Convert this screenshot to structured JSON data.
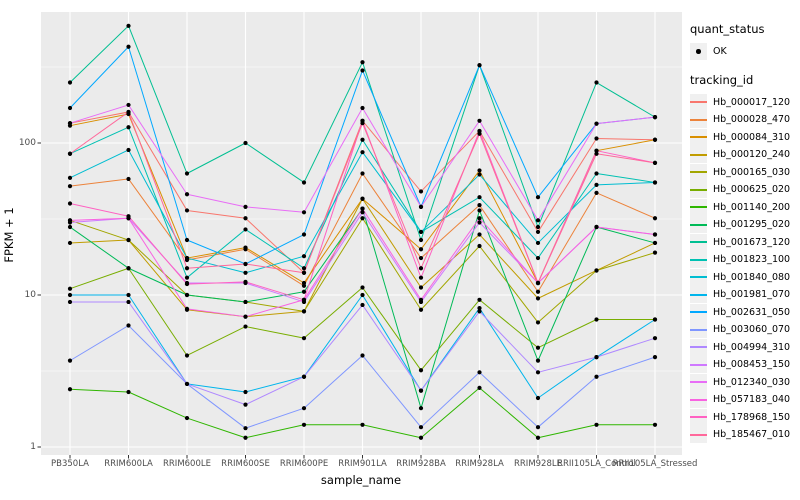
{
  "panel": {
    "bg": "#EBEBEB",
    "grid_color": "#FFFFFF",
    "tick_color": "#333333",
    "tick_label_color": "#4D4D4D",
    "legend_key_bg": "#F0F0F0"
  },
  "y_axis": {
    "title": "FPKM + 1",
    "ticks": [
      {
        "label": "100",
        "value": 100
      },
      {
        "label": "10",
        "value": 10
      },
      {
        "label": "1",
        "value": 1
      }
    ],
    "minor_values": [
      316.23,
      31.623,
      3.1623
    ]
  },
  "x_axis": {
    "title": "sample_name"
  },
  "legend": {
    "quant_title": "quant_status",
    "ok_label": "OK",
    "tracking_title": "tracking_id"
  },
  "chart_data": {
    "type": "line",
    "x_categories": [
      "PB350LA",
      "RRIM600LA",
      "RRIM600LE",
      "RRIM600SE",
      "RRIM600PE",
      "RRIM901LA",
      "RRIM928BA",
      "RRIM928LA",
      "RRIM928LE",
      "RRII105LA_Control",
      "RRII105LA_Stressed"
    ],
    "xlabel": "sample_name",
    "ylabel": "FPKM + 1",
    "y_scale": "log10",
    "ylim": [
      1,
      700
    ],
    "grid": true,
    "legend_position": "right",
    "point_color": "#000000",
    "series": [
      {
        "name": "Hb_000017_120",
        "color": "#F8766D",
        "values": [
          135,
          160,
          36,
          32,
          14,
          140,
          48,
          120,
          26,
          107,
          105
        ]
      },
      {
        "name": "Hb_000028_470",
        "color": "#EC833B",
        "values": [
          52,
          58,
          17,
          20,
          11.5,
          63,
          17.5,
          39,
          10.5,
          47,
          32
        ]
      },
      {
        "name": "Hb_000084_310",
        "color": "#D98F00",
        "values": [
          130,
          155,
          17.5,
          20.5,
          12,
          43,
          20,
          66,
          12,
          89,
          105
        ]
      },
      {
        "name": "Hb_000120_240",
        "color": "#C19C00",
        "values": [
          22,
          23,
          8,
          7.2,
          7.8,
          43,
          11.2,
          25,
          9.5,
          14.5,
          22
        ]
      },
      {
        "name": "Hb_000165_030",
        "color": "#A2A600",
        "values": [
          31,
          23,
          10,
          9,
          7.8,
          32,
          8,
          21,
          6.6,
          14.5,
          19
        ]
      },
      {
        "name": "Hb_000625_020",
        "color": "#78AD00",
        "values": [
          11,
          15,
          4,
          6.2,
          5.2,
          11.2,
          3.2,
          9.3,
          4.5,
          6.9,
          6.9
        ]
      },
      {
        "name": "Hb_001140_200",
        "color": "#2FB600",
        "values": [
          2.4,
          2.3,
          1.55,
          1.15,
          1.4,
          1.4,
          1.15,
          2.45,
          1.15,
          1.4,
          1.4
        ]
      },
      {
        "name": "Hb_001295_020",
        "color": "#00BA57",
        "values": [
          28,
          15,
          10,
          9,
          10.5,
          37,
          1.8,
          36,
          3.7,
          28,
          22
        ]
      },
      {
        "name": "Hb_001673_120",
        "color": "#00BF92",
        "values": [
          250,
          590,
          63,
          100,
          55,
          340,
          23,
          325,
          28,
          250,
          148
        ]
      },
      {
        "name": "Hb_001823_100",
        "color": "#00C1B2",
        "values": [
          85,
          127,
          13,
          27,
          15,
          105,
          26,
          44,
          17.5,
          63,
          55
        ]
      },
      {
        "name": "Hb_001840_080",
        "color": "#00BDD1",
        "values": [
          59,
          90,
          17.5,
          14,
          18,
          87,
          26,
          62,
          22,
          53,
          55
        ]
      },
      {
        "name": "Hb_001981_070",
        "color": "#00B5EC",
        "values": [
          10,
          10,
          2.6,
          2.3,
          2.9,
          10,
          2.35,
          8.2,
          2.1,
          3.9,
          6.9
        ]
      },
      {
        "name": "Hb_002631_050",
        "color": "#00A8FF",
        "values": [
          170,
          430,
          23,
          16,
          25,
          300,
          38,
          325,
          44,
          134,
          148
        ]
      },
      {
        "name": "Hb_003060_070",
        "color": "#7F96FF",
        "values": [
          3.7,
          6.3,
          2.6,
          1.33,
          1.8,
          4,
          1.35,
          3.1,
          1.35,
          2.9,
          3.9
        ]
      },
      {
        "name": "Hb_004994_310",
        "color": "#AF88FF",
        "values": [
          9,
          9,
          2.6,
          1.9,
          2.9,
          8.6,
          2.35,
          7.8,
          3.1,
          3.9,
          5.2
        ]
      },
      {
        "name": "Hb_008453_150",
        "color": "#CF78FF",
        "values": [
          30,
          32,
          12,
          12,
          9,
          35,
          9,
          30,
          12,
          28,
          25
        ]
      },
      {
        "name": "Hb_012340_030",
        "color": "#E86DF6",
        "values": [
          135,
          178,
          46,
          38,
          35,
          170,
          38,
          140,
          31,
          134,
          148
        ]
      },
      {
        "name": "Hb_057183_040",
        "color": "#F863E1",
        "values": [
          31,
          32,
          8.1,
          7.2,
          9.3,
          37,
          9.3,
          32,
          12,
          28,
          25
        ]
      },
      {
        "name": "Hb_178968_150",
        "color": "#FF61C2",
        "values": [
          40,
          33,
          11.8,
          12.2,
          9.3,
          140,
          13,
          120,
          12,
          89,
          74
        ]
      },
      {
        "name": "Hb_185467_010",
        "color": "#FF689B",
        "values": [
          85,
          160,
          15,
          16,
          14,
          135,
          15,
          115,
          12,
          85,
          74
        ]
      }
    ]
  }
}
